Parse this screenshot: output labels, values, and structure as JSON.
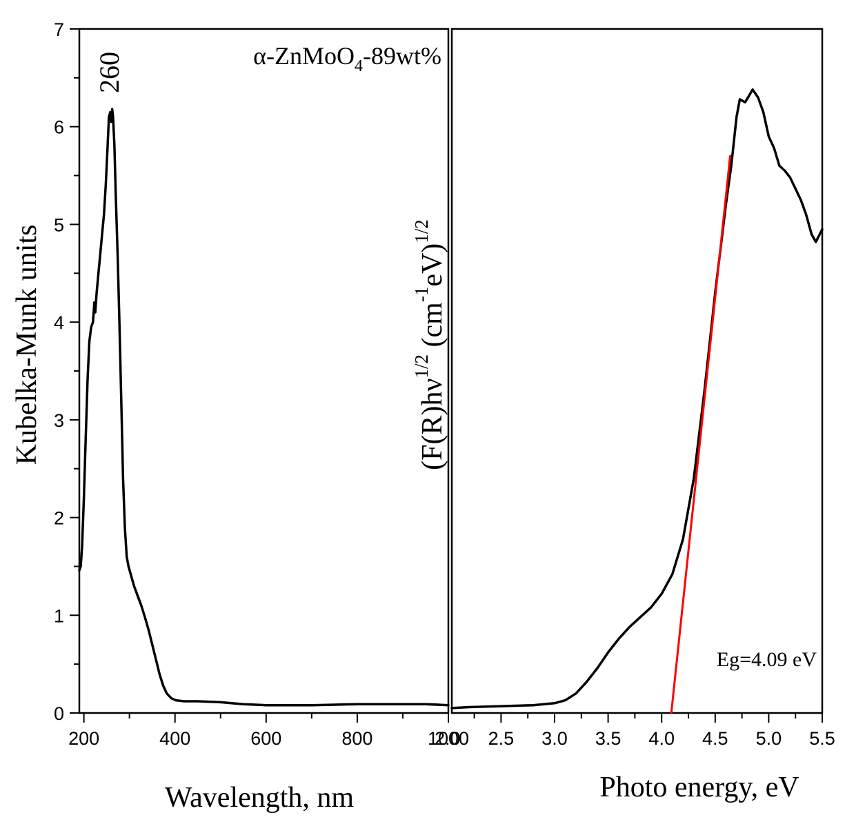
{
  "chart_data": [
    {
      "type": "line",
      "panel": "left",
      "title": "",
      "annotation": {
        "prefix": "α-ZnMoO",
        "subscript": "4",
        "suffix": "-89wt%"
      },
      "peak_label": "260",
      "xlabel": "Wavelength, nm",
      "ylabel": "Kubelka-Munk units",
      "xlim": [
        190,
        1000
      ],
      "ylim": [
        0,
        7
      ],
      "xticks": [
        200,
        400,
        600,
        800,
        1000
      ],
      "xtick_labels": [
        "200",
        "400",
        "600",
        "800",
        "1000"
      ],
      "yticks": [
        0,
        1,
        2,
        3,
        4,
        5,
        6,
        7
      ],
      "ytick_labels": [
        "0",
        "1",
        "2",
        "3",
        "4",
        "5",
        "6",
        "7"
      ],
      "series": [
        {
          "name": "α-ZnMoO4-89wt%",
          "color": "#000000",
          "points": [
            [
              190,
              1.46
            ],
            [
              193,
              1.5
            ],
            [
              196,
              1.7
            ],
            [
              200,
              2.2
            ],
            [
              204,
              2.8
            ],
            [
              208,
              3.4
            ],
            [
              212,
              3.8
            ],
            [
              216,
              3.95
            ],
            [
              220,
              4.0
            ],
            [
              223,
              4.2
            ],
            [
              225,
              4.1
            ],
            [
              228,
              4.3
            ],
            [
              232,
              4.5
            ],
            [
              236,
              4.7
            ],
            [
              240,
              4.9
            ],
            [
              244,
              5.1
            ],
            [
              248,
              5.4
            ],
            [
              252,
              5.8
            ],
            [
              255,
              6.1
            ],
            [
              258,
              6.15
            ],
            [
              260,
              6.05
            ],
            [
              262,
              6.18
            ],
            [
              264,
              6.1
            ],
            [
              267,
              5.8
            ],
            [
              270,
              5.3
            ],
            [
              274,
              4.7
            ],
            [
              278,
              4.0
            ],
            [
              282,
              3.2
            ],
            [
              286,
              2.4
            ],
            [
              290,
              1.9
            ],
            [
              294,
              1.6
            ],
            [
              298,
              1.5
            ],
            [
              304,
              1.4
            ],
            [
              310,
              1.3
            ],
            [
              318,
              1.2
            ],
            [
              326,
              1.1
            ],
            [
              334,
              0.98
            ],
            [
              342,
              0.85
            ],
            [
              350,
              0.7
            ],
            [
              358,
              0.55
            ],
            [
              366,
              0.4
            ],
            [
              374,
              0.28
            ],
            [
              382,
              0.2
            ],
            [
              392,
              0.15
            ],
            [
              402,
              0.13
            ],
            [
              420,
              0.12
            ],
            [
              450,
              0.12
            ],
            [
              500,
              0.11
            ],
            [
              550,
              0.09
            ],
            [
              600,
              0.08
            ],
            [
              650,
              0.08
            ],
            [
              700,
              0.08
            ],
            [
              750,
              0.085
            ],
            [
              800,
              0.09
            ],
            [
              850,
              0.09
            ],
            [
              900,
              0.09
            ],
            [
              950,
              0.09
            ],
            [
              1000,
              0.08
            ]
          ]
        }
      ]
    },
    {
      "type": "line",
      "panel": "right",
      "title": "",
      "annotation": "Eg=4.09 eV",
      "xlabel": "Photo energy, eV",
      "ylabel": {
        "base": "(F(R)hν",
        "sup1": "1/2",
        "mid": " (cm",
        "sup2": "-1",
        "end": "eV)",
        "sup3": "1/2"
      },
      "xlim": [
        2.04,
        5.5
      ],
      "ylim": [
        0,
        7
      ],
      "xticks": [
        2.0,
        2.5,
        3.0,
        3.5,
        4.0,
        4.5,
        5.0,
        5.5
      ],
      "xtick_labels": [
        "2.0",
        "2.5",
        "3.0",
        "3.5",
        "4.0",
        "4.5",
        "5.0",
        "5.5"
      ],
      "series": [
        {
          "name": "spectrum",
          "color": "#000000",
          "points": [
            [
              2.04,
              0.05
            ],
            [
              2.2,
              0.06
            ],
            [
              2.5,
              0.07
            ],
            [
              2.8,
              0.08
            ],
            [
              3.0,
              0.1
            ],
            [
              3.1,
              0.13
            ],
            [
              3.2,
              0.2
            ],
            [
              3.3,
              0.32
            ],
            [
              3.4,
              0.46
            ],
            [
              3.5,
              0.62
            ],
            [
              3.6,
              0.76
            ],
            [
              3.7,
              0.88
            ],
            [
              3.8,
              0.98
            ],
            [
              3.9,
              1.08
            ],
            [
              4.0,
              1.22
            ],
            [
              4.1,
              1.42
            ],
            [
              4.2,
              1.78
            ],
            [
              4.3,
              2.4
            ],
            [
              4.4,
              3.3
            ],
            [
              4.5,
              4.3
            ],
            [
              4.6,
              5.2
            ],
            [
              4.65,
              5.6
            ],
            [
              4.7,
              6.1
            ],
            [
              4.73,
              6.28
            ],
            [
              4.78,
              6.25
            ],
            [
              4.85,
              6.38
            ],
            [
              4.9,
              6.3
            ],
            [
              4.95,
              6.15
            ],
            [
              5.0,
              5.9
            ],
            [
              5.05,
              5.78
            ],
            [
              5.1,
              5.6
            ],
            [
              5.15,
              5.55
            ],
            [
              5.2,
              5.48
            ],
            [
              5.3,
              5.25
            ],
            [
              5.35,
              5.1
            ],
            [
              5.4,
              4.9
            ],
            [
              5.44,
              4.82
            ],
            [
              5.5,
              4.95
            ]
          ]
        },
        {
          "name": "linear fit",
          "color": "#ff0000",
          "points": [
            [
              4.09,
              0.0
            ],
            [
              4.64,
              5.7
            ]
          ]
        }
      ]
    }
  ]
}
